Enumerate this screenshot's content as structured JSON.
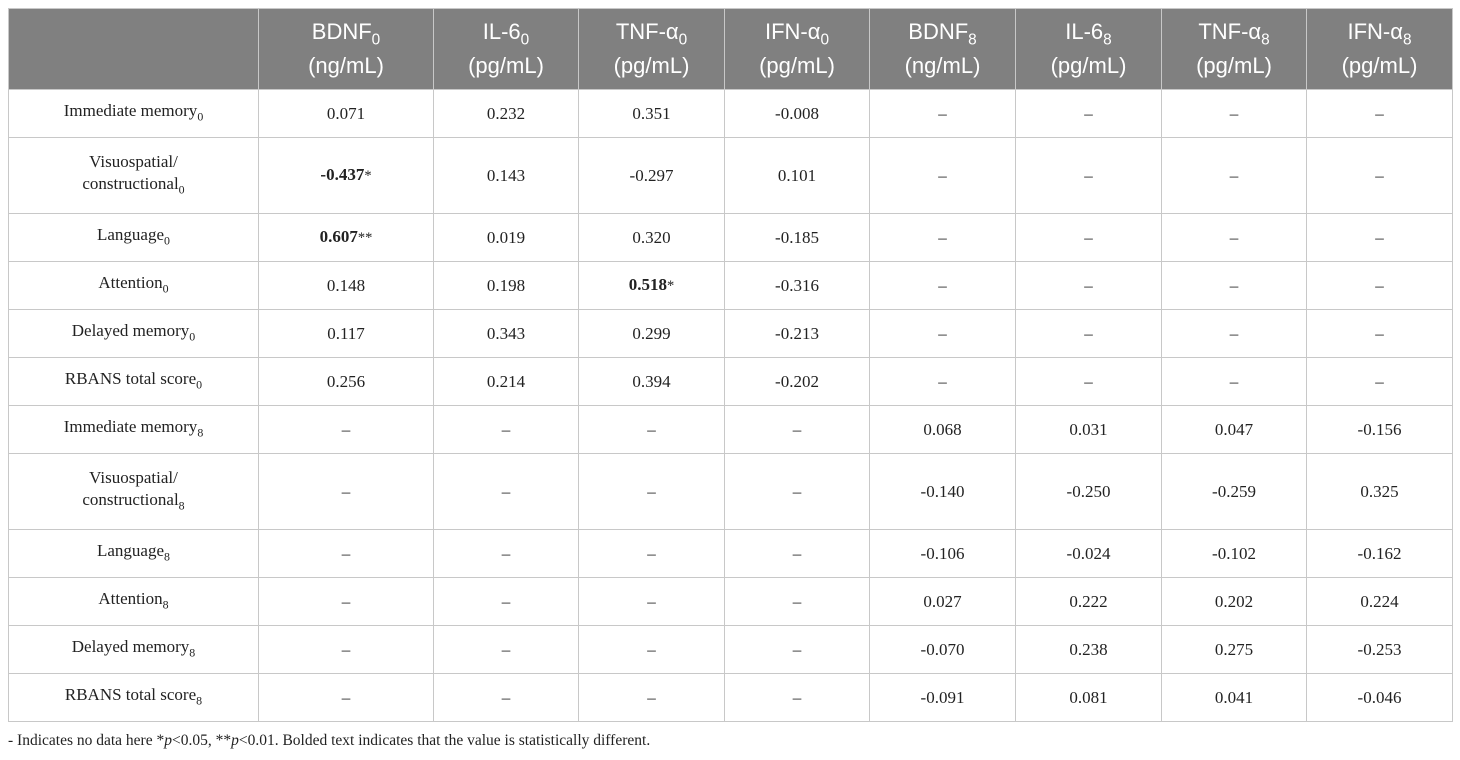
{
  "table": {
    "columns": [
      {
        "name": "BDNF",
        "sub": "0",
        "unit": "(ng/mL)"
      },
      {
        "name": "IL-6",
        "sub": "0",
        "unit": "(pg/mL)"
      },
      {
        "name": "TNF-α",
        "sub": "0",
        "unit": "(pg/mL)"
      },
      {
        "name": "IFN-α",
        "sub": "0",
        "unit": "(pg/mL)"
      },
      {
        "name": "BDNF",
        "sub": "8",
        "unit": "(ng/mL)"
      },
      {
        "name": "IL-6",
        "sub": "8",
        "unit": "(pg/mL)"
      },
      {
        "name": "TNF-α",
        "sub": "8",
        "unit": "(pg/mL)"
      },
      {
        "name": "IFN-α",
        "sub": "8",
        "unit": "(pg/mL)"
      }
    ],
    "rows": [
      {
        "label": "Immediate memory",
        "sub": "0",
        "cells": [
          "0.071",
          "0.232",
          "0.351",
          "-0.008",
          "–",
          "–",
          "–",
          "–"
        ]
      },
      {
        "label": "Visuospatial/\nconstructional",
        "sub": "0",
        "cells": [
          {
            "value": "-0.437",
            "mark": "*",
            "bold": true
          },
          "0.143",
          "-0.297",
          "0.101",
          "–",
          "–",
          "–",
          "–"
        ]
      },
      {
        "label": "Language",
        "sub": "0",
        "cells": [
          {
            "value": "0.607",
            "mark": "**",
            "bold": true
          },
          "0.019",
          "0.320",
          "-0.185",
          "–",
          "–",
          "–",
          "–"
        ]
      },
      {
        "label": "Attention",
        "sub": "0",
        "cells": [
          "0.148",
          "0.198",
          {
            "value": "0.518",
            "mark": "*",
            "bold": true
          },
          "-0.316",
          "–",
          "–",
          "–",
          "–"
        ]
      },
      {
        "label": "Delayed memory",
        "sub": "0",
        "cells": [
          "0.117",
          "0.343",
          "0.299",
          "-0.213",
          "–",
          "–",
          "–",
          "–"
        ]
      },
      {
        "label": "RBANS total score",
        "sub": "0",
        "cells": [
          "0.256",
          "0.214",
          "0.394",
          "-0.202",
          "–",
          "–",
          "–",
          "–"
        ]
      },
      {
        "label": "Immediate memory",
        "sub": "8",
        "cells": [
          "–",
          "–",
          "–",
          "–",
          "0.068",
          "0.031",
          "0.047",
          "-0.156"
        ]
      },
      {
        "label": "Visuospatial/\nconstructional",
        "sub": "8",
        "cells": [
          "–",
          "–",
          "–",
          "–",
          "-0.140",
          "-0.250",
          "-0.259",
          "0.325"
        ]
      },
      {
        "label": "Language",
        "sub": "8",
        "cells": [
          "–",
          "–",
          "–",
          "–",
          "-0.106",
          "-0.024",
          "-0.102",
          "-0.162"
        ]
      },
      {
        "label": "Attention",
        "sub": "8",
        "cells": [
          "–",
          "–",
          "–",
          "–",
          "0.027",
          "0.222",
          "0.202",
          "0.224"
        ]
      },
      {
        "label": "Delayed memory",
        "sub": "8",
        "cells": [
          "–",
          "–",
          "–",
          "–",
          "-0.070",
          "0.238",
          "0.275",
          "-0.253"
        ]
      },
      {
        "label": "RBANS total score",
        "sub": "8",
        "cells": [
          "–",
          "–",
          "–",
          "–",
          "-0.091",
          "0.081",
          "0.041",
          "-0.046"
        ]
      }
    ]
  },
  "footnote": [
    {
      "text": "- Indicates no data here *"
    },
    {
      "text": "p",
      "italic": true
    },
    {
      "text": "<0.05, **"
    },
    {
      "text": "p",
      "italic": true
    },
    {
      "text": "<0.01. Bolded text indicates that the value is statistically different."
    }
  ]
}
